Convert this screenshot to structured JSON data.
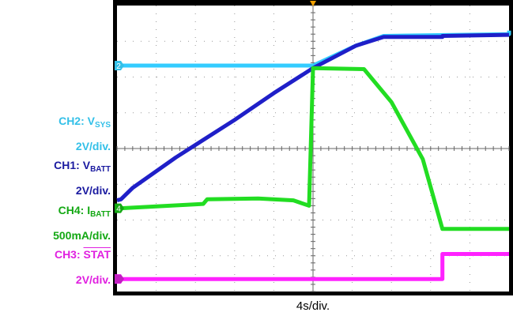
{
  "chart_data": {
    "type": "line",
    "xlabel": "4s/div.",
    "x_divisions": 10,
    "y_divisions": 8,
    "grid": true,
    "colors": {
      "background": "#ffffff",
      "frame": "#000000",
      "grid": "#999999",
      "trigger_marker": "#f0a000"
    },
    "channel_labels": [
      {
        "name": "CH2",
        "symbol": "V",
        "subscript": "SYS",
        "overline": false,
        "scale": "2V/div.",
        "color": "#33c0e8",
        "marker": "2"
      },
      {
        "name": "CH1",
        "symbol": "V",
        "subscript": "BATT",
        "overline": false,
        "scale": "2V/div.",
        "color": "#1a1aa0",
        "marker": ""
      },
      {
        "name": "CH4",
        "symbol": "I",
        "subscript": "BATT",
        "overline": false,
        "scale": "500mA/div.",
        "color": "#13a813",
        "marker": "4"
      },
      {
        "name": "CH3",
        "symbol": "STAT",
        "subscript": "",
        "overline": true,
        "scale": "2V/div.",
        "color": "#e020e0",
        "marker": "3"
      }
    ],
    "series": [
      {
        "channel": "CH2",
        "color": "#33ccff",
        "width": 5,
        "points": [
          [
            0,
            6.32
          ],
          [
            5.0,
            6.32
          ],
          [
            6.1,
            6.88
          ],
          [
            6.8,
            7.15
          ],
          [
            10,
            7.2
          ],
          [
            10,
            7.3
          ]
        ]
      },
      {
        "channel": "CH1",
        "color": "#1f1fc8",
        "width": 5,
        "points": [
          [
            0,
            2.55
          ],
          [
            0.1,
            2.58
          ],
          [
            0.4,
            2.9
          ],
          [
            1.5,
            3.75
          ],
          [
            3.0,
            4.8
          ],
          [
            4.0,
            5.55
          ],
          [
            5.0,
            6.25
          ],
          [
            6.1,
            6.88
          ],
          [
            6.8,
            7.12
          ],
          [
            8.3,
            7.12
          ],
          [
            8.3,
            7.15
          ],
          [
            10,
            7.18
          ]
        ]
      },
      {
        "channel": "CH4",
        "color": "#22dd22",
        "width": 5,
        "points": [
          [
            0.1,
            2.33
          ],
          [
            2.2,
            2.45
          ],
          [
            2.3,
            2.58
          ],
          [
            3.6,
            2.6
          ],
          [
            4.5,
            2.55
          ],
          [
            4.9,
            2.4
          ],
          [
            5.0,
            6.25
          ],
          [
            6.3,
            6.22
          ],
          [
            7.0,
            5.3
          ],
          [
            7.8,
            3.7
          ],
          [
            8.3,
            1.75
          ],
          [
            10,
            1.75
          ]
        ]
      },
      {
        "channel": "CH3",
        "color": "#ff22ff",
        "width": 5,
        "points": [
          [
            0.1,
            0.35
          ],
          [
            8.3,
            0.35
          ],
          [
            8.3,
            1.05
          ],
          [
            10,
            1.05
          ]
        ]
      }
    ]
  }
}
